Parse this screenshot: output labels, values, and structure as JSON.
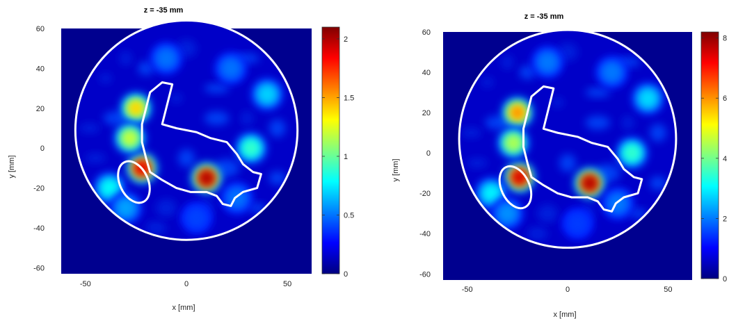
{
  "chart_data": [
    {
      "type": "heatmap",
      "title": "z = -35 mm",
      "xlabel": "x [mm]",
      "ylabel": "y [mm]",
      "xlim": [
        -62,
        62
      ],
      "ylim": [
        -63,
        60
      ],
      "xticks": [
        "-50",
        "0",
        "50"
      ],
      "xtick_values": [
        -50,
        0,
        50
      ],
      "yticks": [
        "60",
        "40",
        "20",
        "0",
        "-20",
        "-40",
        "-60"
      ],
      "ytick_values": [
        60,
        40,
        20,
        0,
        -20,
        -40,
        -60
      ],
      "colorbar": {
        "min": 0,
        "max": 2.1,
        "ticks": [
          "2",
          "1.5",
          "1",
          "0.5",
          "0"
        ],
        "tick_values": [
          2,
          1.5,
          1,
          0.5,
          0
        ]
      },
      "colormap": "jet",
      "background_color": "#00008f",
      "boundary_circle": {
        "cx": 0,
        "cy": 9,
        "r": 55
      },
      "hotspots": [
        {
          "x": 10,
          "y": -15,
          "value": 2.0
        },
        {
          "x": -22,
          "y": -10,
          "value": 1.9
        },
        {
          "x": -25,
          "y": 20,
          "value": 1.4
        },
        {
          "x": -28,
          "y": 5,
          "value": 1.2
        },
        {
          "x": -38,
          "y": -20,
          "value": 0.8
        },
        {
          "x": 32,
          "y": 0,
          "value": 0.9
        },
        {
          "x": 40,
          "y": 27,
          "value": 0.7
        },
        {
          "x": -10,
          "y": 45,
          "value": 0.5
        },
        {
          "x": 22,
          "y": 40,
          "value": 0.5
        },
        {
          "x": 5,
          "y": -35,
          "value": 0.4
        },
        {
          "x": 25,
          "y": -25,
          "value": 0.5
        },
        {
          "x": -30,
          "y": -30,
          "value": 0.6
        }
      ]
    },
    {
      "type": "heatmap",
      "title": "z = -35 mm",
      "xlabel": "x [mm]",
      "ylabel": "y [mm]",
      "xlim": [
        -62,
        62
      ],
      "ylim": [
        -63,
        60
      ],
      "xticks": [
        "-50",
        "0",
        "50"
      ],
      "xtick_values": [
        -50,
        0,
        50
      ],
      "yticks": [
        "60",
        "40",
        "20",
        "0",
        "-20",
        "-40",
        "-60"
      ],
      "ytick_values": [
        60,
        40,
        20,
        0,
        -20,
        -40,
        -60
      ],
      "colorbar": {
        "min": 0,
        "max": 8.2,
        "ticks": [
          "8",
          "6",
          "4",
          "2",
          "0"
        ],
        "tick_values": [
          8,
          6,
          4,
          2,
          0
        ]
      },
      "colormap": "jet",
      "background_color": "#00008f",
      "boundary_circle": {
        "cx": 0,
        "cy": 7,
        "r": 54
      },
      "hotspots": [
        {
          "x": 11,
          "y": -15,
          "value": 7.8
        },
        {
          "x": -24,
          "y": -12,
          "value": 7.5
        },
        {
          "x": -25,
          "y": 20,
          "value": 6.0
        },
        {
          "x": -27,
          "y": 5,
          "value": 4.5
        },
        {
          "x": -38,
          "y": -20,
          "value": 3.0
        },
        {
          "x": 32,
          "y": 0,
          "value": 3.5
        },
        {
          "x": 40,
          "y": 27,
          "value": 2.8
        },
        {
          "x": -10,
          "y": 45,
          "value": 2.0
        },
        {
          "x": 22,
          "y": 40,
          "value": 2.0
        },
        {
          "x": 5,
          "y": -35,
          "value": 1.5
        },
        {
          "x": 25,
          "y": -25,
          "value": 2.0
        },
        {
          "x": -30,
          "y": -30,
          "value": 2.2
        }
      ]
    }
  ]
}
